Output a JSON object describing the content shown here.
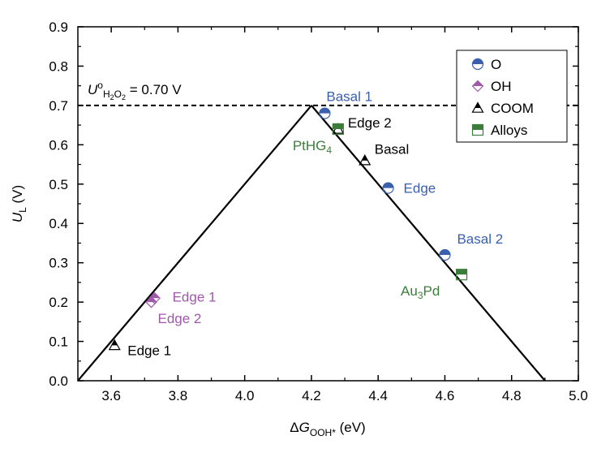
{
  "chart_data": {
    "type": "scatter",
    "xlabel": {
      "prefix": "Δ",
      "var": "G",
      "sub": "OOH*",
      "unit": " (eV)"
    },
    "ylabel": {
      "var": "U",
      "sub": "L",
      "unit": " (V)"
    },
    "xlim": [
      3.5,
      5.0
    ],
    "ylim": [
      0.0,
      0.9
    ],
    "x_ticks": [
      "3.6",
      "3.8",
      "4.0",
      "4.2",
      "4.4",
      "4.6",
      "4.8",
      "5.0"
    ],
    "y_ticks": [
      "0.0",
      "0.1",
      "0.2",
      "0.3",
      "0.4",
      "0.5",
      "0.6",
      "0.7",
      "0.8",
      "0.9"
    ],
    "grid": false,
    "legend_position": "top-right",
    "colors": {
      "blue": "#3a5fad",
      "purple": "#9e5aa8",
      "black": "#000000",
      "green": "#3c7d3c"
    },
    "volcano": {
      "left": [
        [
          3.5,
          0.0
        ],
        [
          4.2,
          0.7
        ]
      ],
      "right": [
        [
          4.2,
          0.7
        ],
        [
          4.9,
          0.0
        ]
      ]
    },
    "equilibrium_line": {
      "y": 0.7,
      "label_U": "U",
      "label_sup": "o",
      "label_sub_parts": [
        "H",
        "2",
        "O",
        "2"
      ],
      "label_value": " = 0.70 V"
    },
    "series": [
      {
        "name": "O",
        "marker": "circle-half",
        "color": "#3a5fad",
        "points": [
          {
            "x": 4.24,
            "y": 0.68,
            "label": "Basal 1"
          },
          {
            "x": 4.43,
            "y": 0.49,
            "label": "Edge"
          },
          {
            "x": 4.6,
            "y": 0.32,
            "label": "Basal 2"
          }
        ]
      },
      {
        "name": "OH",
        "marker": "diamond-half",
        "color": "#9e5aa8",
        "points": [
          {
            "x": 3.73,
            "y": 0.21,
            "label": "Edge 1"
          },
          {
            "x": 3.72,
            "y": 0.2,
            "label": "Edge 2"
          }
        ]
      },
      {
        "name": "COOM",
        "marker": "triangle-half",
        "color": "#000000",
        "points": [
          {
            "x": 3.61,
            "y": 0.09,
            "label": "Edge 1"
          },
          {
            "x": 4.28,
            "y": 0.64,
            "label": "Edge 2"
          },
          {
            "x": 4.36,
            "y": 0.56,
            "label": "Basal"
          }
        ]
      },
      {
        "name": "Alloys",
        "marker": "square-half",
        "color": "#3c7d3c",
        "points": [
          {
            "x": 4.28,
            "y": 0.64,
            "label": "PtHG4",
            "label_main": "PtHG",
            "label_sub": "4"
          },
          {
            "x": 4.65,
            "y": 0.27,
            "label": "Au3Pd",
            "label_main": "Au",
            "label_sub": "3",
            "label_tail": "Pd"
          }
        ]
      }
    ]
  }
}
